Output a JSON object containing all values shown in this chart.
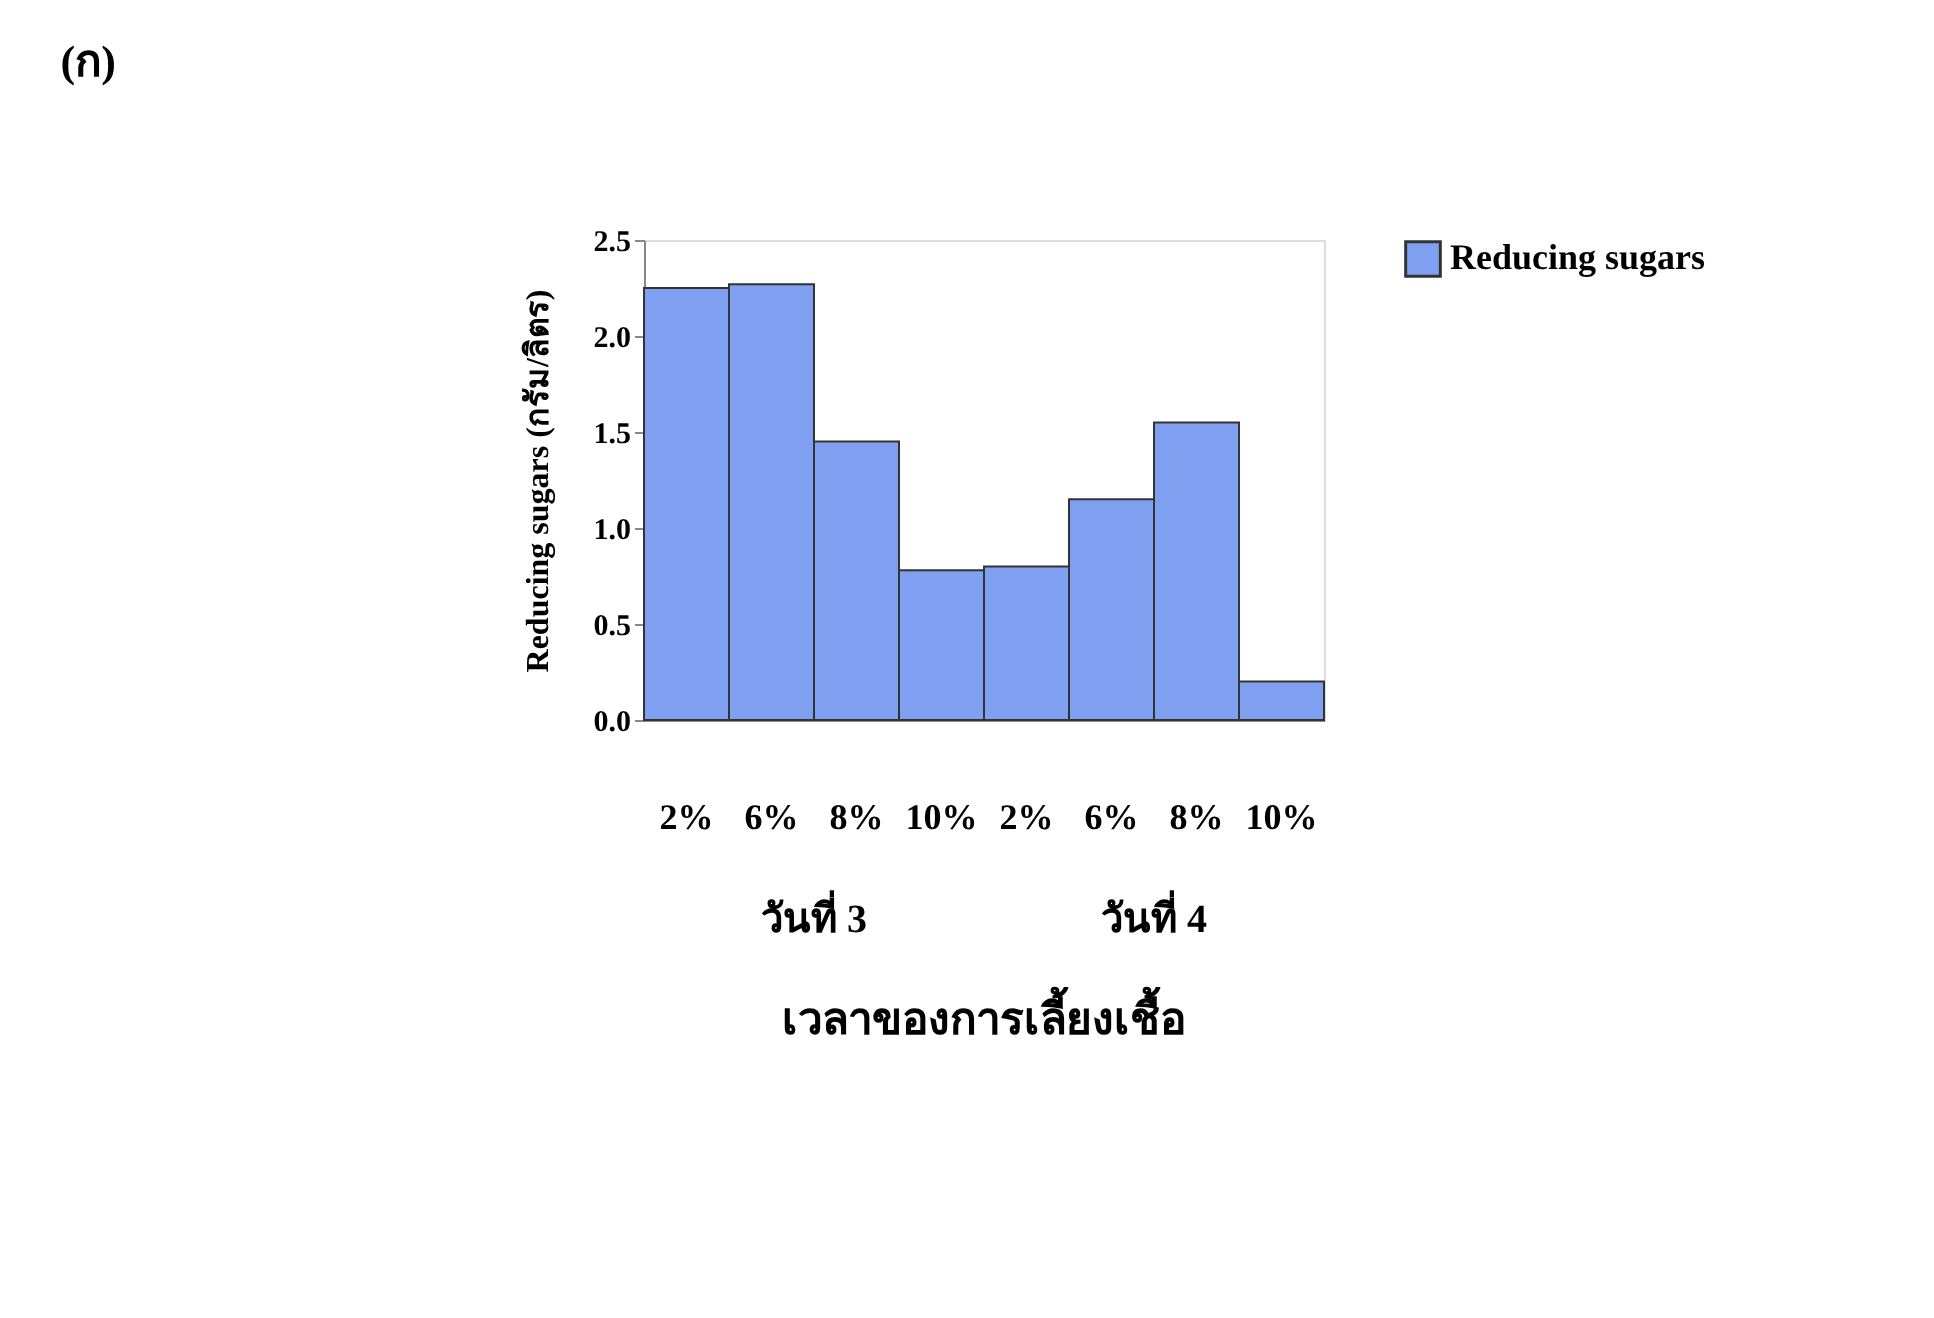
{
  "chart_data": {
    "type": "bar",
    "title": "(ก)",
    "categories": [
      "2%",
      "6%",
      "8%",
      "10%",
      "2%",
      "6%",
      "8%",
      "10%"
    ],
    "series": [
      {
        "name": "Reducing sugars",
        "color": "#7f9ff0",
        "values": [
          2.25,
          2.27,
          1.45,
          0.78,
          0.8,
          1.15,
          1.55,
          0.2
        ]
      }
    ],
    "ylabel": "Reducing sugars (กรัม/ลิตร)",
    "xlabel": "เวลาของการเลี้ยงเชื้อ",
    "annotations": [
      "วันที่ 3",
      "วันที่ 4"
    ],
    "ylim": [
      0,
      2.5
    ],
    "yticks": [
      {
        "value": 0,
        "label": "0.0"
      },
      0.5,
      {
        "value": 1,
        "label": "1.0"
      },
      1.5,
      {
        "value": 2,
        "label": "2.0"
      },
      2.5
    ],
    "grid": false,
    "legend": "right"
  }
}
